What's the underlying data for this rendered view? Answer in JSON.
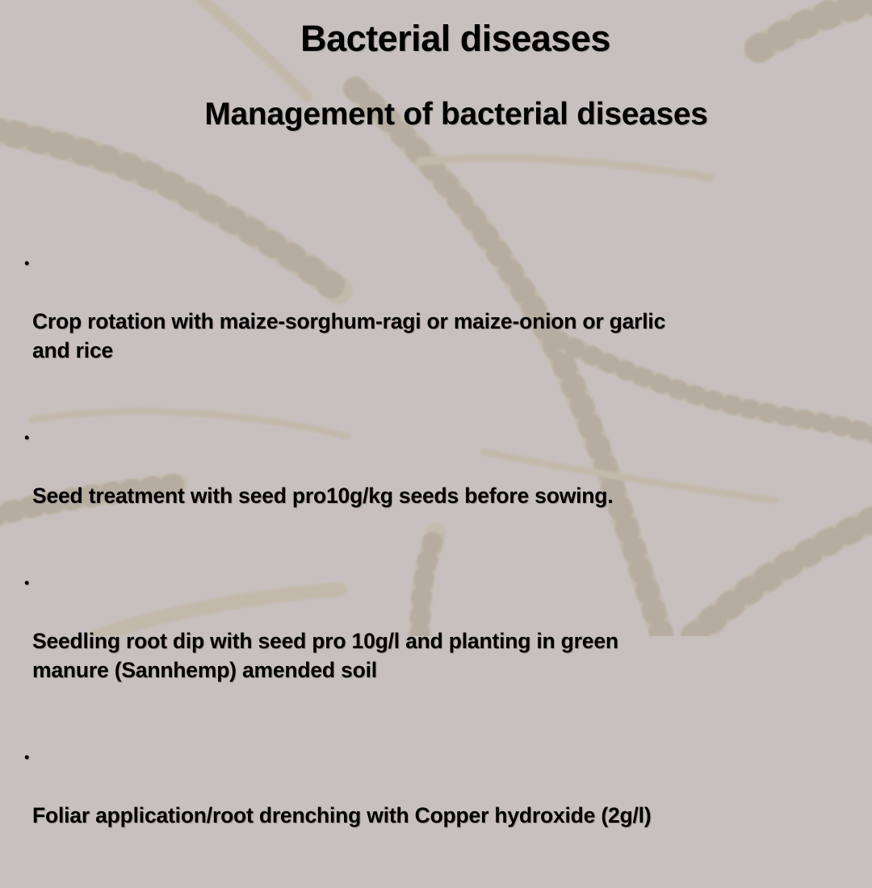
{
  "slide": {
    "title": "Bacterial diseases",
    "subtitle": "Management of bacterial diseases",
    "bullet_symbol": "•",
    "bullets": [
      {
        "text": "Crop rotation with maize-sorghum-ragi or  maize-onion or garlic\n and rice"
      },
      {
        "text": "Seed treatment with  seed pro10g/kg seeds before sowing."
      },
      {
        "text": "Seedling root dip with  seed pro 10g/l and planting  in green\n manure (Sannhemp)  amended soil"
      },
      {
        "text": "Foliar application/root drenching with Copper hydroxide (2g/l)"
      }
    ]
  },
  "colors": {
    "background": "#c8c0bf",
    "text": "#000000",
    "hypha_fill": "#bdb49c",
    "hypha_edge": "#a79e86"
  }
}
